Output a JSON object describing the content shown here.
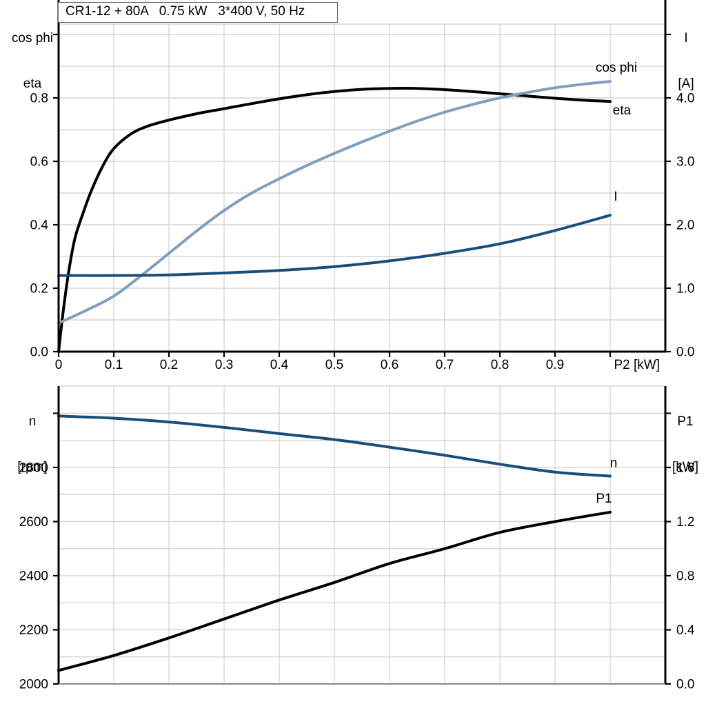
{
  "title_box": {
    "text": "CR1-12 + 80A   0.75 kW   3*400 V, 50 Hz"
  },
  "colors": {
    "black": "#000000",
    "dark_blue": "#1a4e7a",
    "light_blue": "#7f9fbf",
    "grid": "#d5d5d5",
    "axis_gray": "#8c8c8c",
    "box_border": "#6a6a6a"
  },
  "chart_data": [
    {
      "type": "line",
      "title": "CR1-12 + 80A   0.75 kW   3*400 V, 50 Hz",
      "xlabel": "P2 [kW]",
      "xlim": [
        0,
        1.1
      ],
      "grid": true,
      "x_ticks": [
        {
          "v": 0.0,
          "label": "0"
        },
        {
          "v": 0.1,
          "label": "0.1"
        },
        {
          "v": 0.2,
          "label": "0.2"
        },
        {
          "v": 0.3,
          "label": "0.3"
        },
        {
          "v": 0.4,
          "label": "0.4"
        },
        {
          "v": 0.5,
          "label": "0.5"
        },
        {
          "v": 0.6,
          "label": "0.6"
        },
        {
          "v": 0.7,
          "label": "0.7"
        },
        {
          "v": 0.8,
          "label": "0.8"
        },
        {
          "v": 0.9,
          "label": "0.9"
        },
        {
          "v": 1.0,
          "label": ""
        }
      ],
      "left_axis": {
        "title_lines": [
          "cos phi",
          "eta"
        ],
        "lim": [
          0,
          1.0
        ],
        "grid_step": 0.1,
        "ticks": [
          {
            "v": 0.0,
            "label": "0.0"
          },
          {
            "v": 0.2,
            "label": "0.2"
          },
          {
            "v": 0.4,
            "label": "0.4"
          },
          {
            "v": 0.6,
            "label": "0.6"
          },
          {
            "v": 0.8,
            "label": "0.8"
          },
          {
            "v": 1.0,
            "label": ""
          }
        ]
      },
      "right_axis": {
        "title_lines": [
          "I",
          "[A]"
        ],
        "lim": [
          0,
          5.0
        ],
        "ticks": [
          {
            "v": 0.0,
            "label": "0.0"
          },
          {
            "v": 1.0,
            "label": "1.0"
          },
          {
            "v": 2.0,
            "label": "2.0"
          },
          {
            "v": 3.0,
            "label": "3.0"
          },
          {
            "v": 4.0,
            "label": "4.0"
          },
          {
            "v": 5.0,
            "label": ""
          }
        ]
      },
      "series": [
        {
          "name": "eta",
          "label": "eta",
          "axis": "left",
          "color_key": "black",
          "label_offset": [
            17,
            19
          ],
          "x": [
            0,
            0.01,
            0.02,
            0.03,
            0.045,
            0.06,
            0.08,
            0.1,
            0.13,
            0.16,
            0.2,
            0.25,
            0.3,
            0.35,
            0.4,
            0.45,
            0.5,
            0.55,
            0.6,
            0.65,
            0.7,
            0.75,
            0.8,
            0.85,
            0.9,
            0.95,
            1.0
          ],
          "y": [
            0,
            0.15,
            0.27,
            0.36,
            0.44,
            0.51,
            0.585,
            0.64,
            0.685,
            0.71,
            0.73,
            0.75,
            0.766,
            0.782,
            0.797,
            0.81,
            0.82,
            0.827,
            0.83,
            0.83,
            0.826,
            0.82,
            0.813,
            0.806,
            0.799,
            0.793,
            0.789
          ]
        },
        {
          "name": "cos phi",
          "label": "cos phi",
          "axis": "left",
          "color_key": "light_blue",
          "label_offset": [
            9,
            -14
          ],
          "x": [
            0,
            0.05,
            0.1,
            0.15,
            0.2,
            0.25,
            0.3,
            0.35,
            0.4,
            0.45,
            0.5,
            0.55,
            0.6,
            0.65,
            0.7,
            0.75,
            0.8,
            0.85,
            0.9,
            0.95,
            1.0
          ],
          "y": [
            0.09,
            0.13,
            0.175,
            0.24,
            0.31,
            0.38,
            0.445,
            0.5,
            0.545,
            0.587,
            0.625,
            0.661,
            0.695,
            0.727,
            0.755,
            0.779,
            0.8,
            0.817,
            0.832,
            0.843,
            0.852
          ]
        },
        {
          "name": "I",
          "label": "I",
          "axis": "right",
          "color_key": "dark_blue",
          "label_offset": [
            8,
            -21
          ],
          "x": [
            0,
            0.1,
            0.2,
            0.3,
            0.4,
            0.5,
            0.6,
            0.7,
            0.8,
            0.9,
            1.0
          ],
          "y": [
            1.2,
            1.2,
            1.21,
            1.24,
            1.28,
            1.34,
            1.43,
            1.55,
            1.7,
            1.91,
            2.15
          ]
        }
      ]
    },
    {
      "type": "line",
      "title": "",
      "xlabel": "",
      "xlim": [
        0,
        1.1
      ],
      "grid": true,
      "x_ticks": [],
      "left_axis": {
        "title_lines": [
          "n",
          "[rpm]"
        ],
        "lim": [
          2000,
          3000
        ],
        "grid_step": 100,
        "ticks": [
          {
            "v": 2000,
            "label": "2000"
          },
          {
            "v": 2200,
            "label": "2200"
          },
          {
            "v": 2400,
            "label": "2400"
          },
          {
            "v": 2600,
            "label": "2600"
          },
          {
            "v": 2800,
            "label": "2800"
          },
          {
            "v": 3000,
            "label": ""
          }
        ]
      },
      "right_axis": {
        "title_lines": [
          "P1",
          "[kW]"
        ],
        "lim": [
          0,
          2.0
        ],
        "ticks": [
          {
            "v": 0.0,
            "label": "0.0"
          },
          {
            "v": 0.4,
            "label": "0.4"
          },
          {
            "v": 0.8,
            "label": "0.8"
          },
          {
            "v": 1.2,
            "label": "1.2"
          },
          {
            "v": 1.6,
            "label": "1.6"
          },
          {
            "v": 2.0,
            "label": ""
          }
        ]
      },
      "series": [
        {
          "name": "n",
          "label": "n",
          "axis": "left",
          "color_key": "dark_blue",
          "label_offset": [
            5,
            -13
          ],
          "x": [
            0,
            0.1,
            0.2,
            0.3,
            0.4,
            0.5,
            0.6,
            0.7,
            0.8,
            0.9,
            1.0
          ],
          "y": [
            2990,
            2982,
            2968,
            2948,
            2925,
            2903,
            2875,
            2845,
            2812,
            2783,
            2768
          ]
        },
        {
          "name": "P1",
          "label": "P1",
          "axis": "right",
          "color_key": "black",
          "label_offset": [
            -9,
            -14
          ],
          "x": [
            0,
            0.1,
            0.2,
            0.3,
            0.4,
            0.5,
            0.6,
            0.7,
            0.8,
            0.9,
            1.0
          ],
          "y": [
            0.1,
            0.21,
            0.34,
            0.48,
            0.62,
            0.75,
            0.89,
            1.0,
            1.12,
            1.2,
            1.27
          ]
        }
      ]
    }
  ]
}
